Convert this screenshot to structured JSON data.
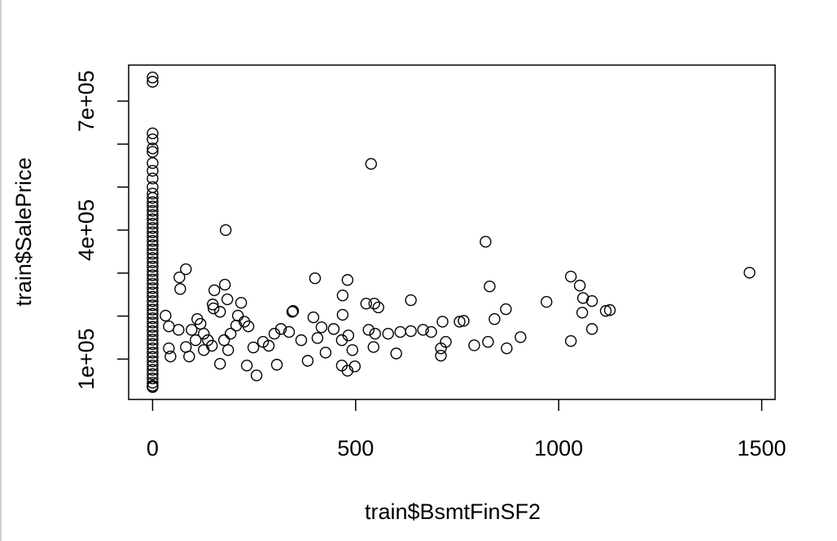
{
  "chart_data": {
    "type": "scatter",
    "xlabel": "train$BsmtFinSF2",
    "ylabel": "train$SalePrice",
    "color": "#000000",
    "xlim": [
      -59,
      1533
    ],
    "ylim": [
      6096,
      783804
    ],
    "xticks": [
      0,
      500,
      1000,
      1500
    ],
    "yticks": [
      {
        "value": 100000,
        "label": "1e+05"
      },
      {
        "value": 200000,
        "label": null
      },
      {
        "value": 300000,
        "label": null
      },
      {
        "value": 400000,
        "label": "4e+05"
      },
      {
        "value": 500000,
        "label": null
      },
      {
        "value": 600000,
        "label": null
      },
      {
        "value": 700000,
        "label": "7e+05"
      }
    ],
    "x": [
      538,
      180,
      820,
      1470,
      480,
      400,
      82,
      66,
      68,
      152,
      178,
      184,
      218,
      148,
      150,
      166,
      32,
      40,
      64,
      40,
      44,
      96,
      106,
      110,
      118,
      126,
      136,
      146,
      176,
      186,
      192,
      206,
      226,
      236,
      210,
      126,
      90,
      82,
      286,
      300,
      336,
      344,
      366,
      382,
      396,
      406,
      416,
      426,
      446,
      466,
      482,
      492,
      466,
      480,
      498,
      468,
      468,
      532,
      548,
      544,
      526,
      546,
      556,
      580,
      600,
      610,
      636,
      666,
      686,
      710,
      710,
      722,
      714,
      636,
      830,
      842,
      870,
      872,
      906,
      970,
      1030,
      1030,
      1052,
      1060,
      1058,
      1082,
      1082,
      1116,
      1126,
      756,
      766,
      792,
      256,
      232,
      166,
      306,
      346,
      248,
      272,
      316,
      826,
      0,
      0,
      0,
      0,
      0,
      0,
      0,
      0,
      0,
      0,
      0,
      0,
      0,
      0,
      0,
      0,
      0,
      0,
      0,
      0,
      0,
      0,
      0,
      0,
      0,
      0,
      0,
      0,
      0,
      0,
      0,
      0,
      0,
      0,
      0,
      0,
      0,
      0,
      0,
      0,
      0,
      0,
      0,
      0,
      0,
      0,
      0,
      0,
      0,
      0,
      0,
      0,
      0,
      0,
      0,
      0,
      0
    ],
    "values": [
      554000,
      400000,
      373000,
      301000,
      284000,
      288000,
      309000,
      290000,
      263000,
      260000,
      273000,
      239000,
      231000,
      227000,
      218000,
      210000,
      201000,
      176000,
      168000,
      125000,
      106000,
      168000,
      144000,
      193000,
      182000,
      159000,
      144000,
      131000,
      144000,
      121000,
      159000,
      178000,
      187000,
      176000,
      201000,
      121000,
      106000,
      128000,
      131000,
      159000,
      163000,
      210000,
      144000,
      96000,
      197000,
      149000,
      174000,
      115000,
      170000,
      144000,
      155000,
      121000,
      85000,
      73000,
      83000,
      248000,
      203000,
      168000,
      159000,
      128000,
      229000,
      229000,
      220000,
      159000,
      113000,
      163000,
      165000,
      168000,
      163000,
      125000,
      108000,
      140000,
      187000,
      237000,
      269000,
      193000,
      216000,
      125000,
      151000,
      233000,
      142000,
      292000,
      271000,
      242000,
      208000,
      235000,
      170000,
      212000,
      214000,
      187000,
      189000,
      132000,
      62000,
      85000,
      89000,
      87000,
      212000,
      127000,
      140000,
      170000,
      140000,
      755000,
      745000,
      625000,
      611000,
      590000,
      582000,
      556000,
      538000,
      520000,
      500000,
      485000,
      475000,
      465000,
      455000,
      445000,
      435000,
      425000,
      415000,
      405000,
      395000,
      385000,
      375000,
      365000,
      355000,
      345000,
      335000,
      325000,
      315000,
      305000,
      295000,
      285000,
      275000,
      265000,
      255000,
      245000,
      235000,
      225000,
      215000,
      205000,
      195000,
      185000,
      175000,
      165000,
      155000,
      145000,
      135000,
      125000,
      115000,
      105000,
      95000,
      85000,
      75000,
      65000,
      55000,
      45000,
      37900,
      34900
    ]
  }
}
